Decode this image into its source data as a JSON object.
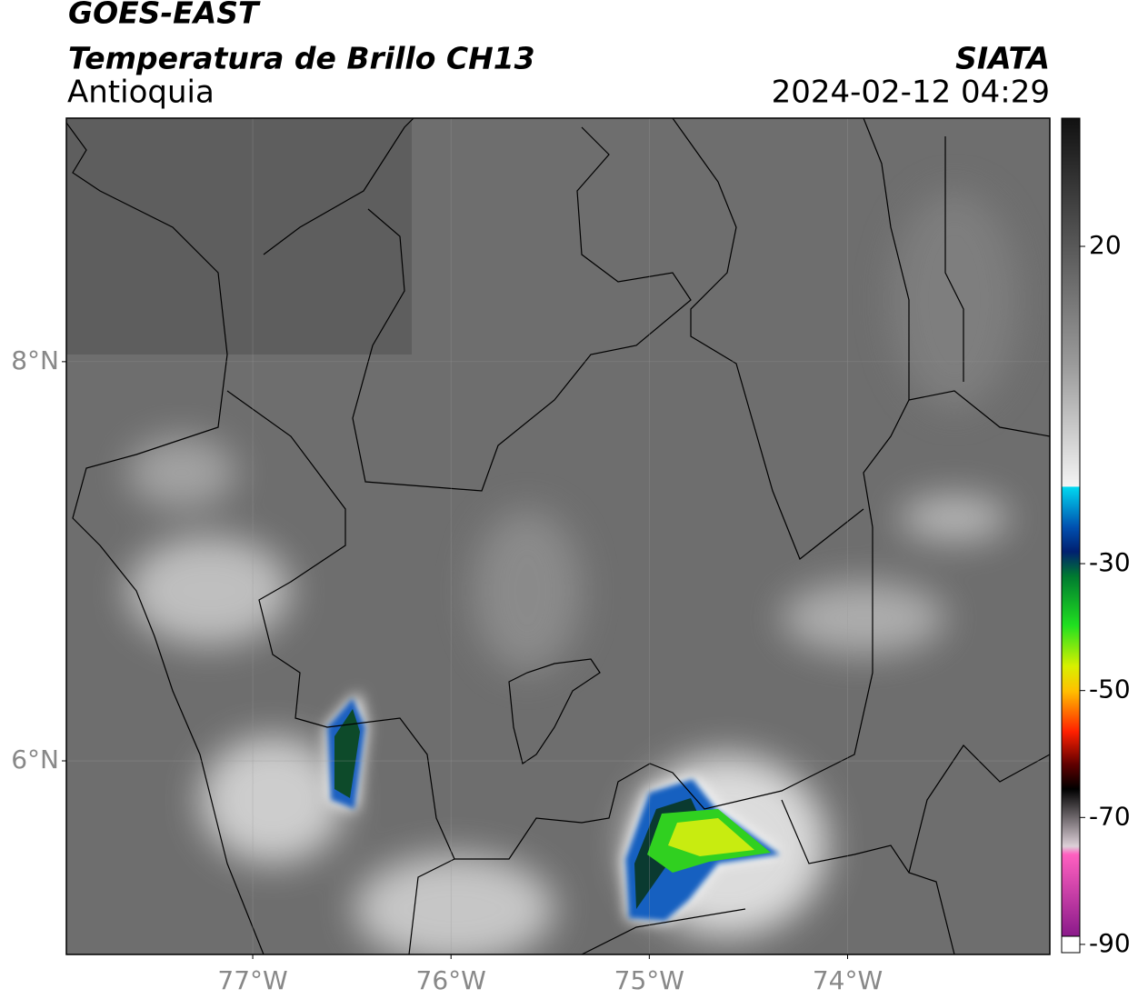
{
  "header": {
    "title": "GOES-EAST",
    "product": "Temperatura de Brillo CH13",
    "region": "Antioquia",
    "agency": "SIATA",
    "timestamp": "2024-02-12 04:29"
  },
  "map": {
    "lonlim": [
      -77.94,
      -72.98
    ],
    "latlim": [
      5.03,
      9.22
    ],
    "lonticks": [
      {
        "value": -77,
        "label": "77°W"
      },
      {
        "value": -76,
        "label": "76°W"
      },
      {
        "value": -75,
        "label": "75°W"
      },
      {
        "value": -74,
        "label": "74°W"
      }
    ],
    "latticks": [
      {
        "value": 8,
        "label": "8°N"
      },
      {
        "value": 6,
        "label": "6°N"
      }
    ],
    "grid": true
  },
  "colorbar": {
    "lim": [
      -91.3,
      40.2
    ],
    "ticks": [
      20,
      -30,
      -50,
      -70,
      -90
    ]
  }
}
